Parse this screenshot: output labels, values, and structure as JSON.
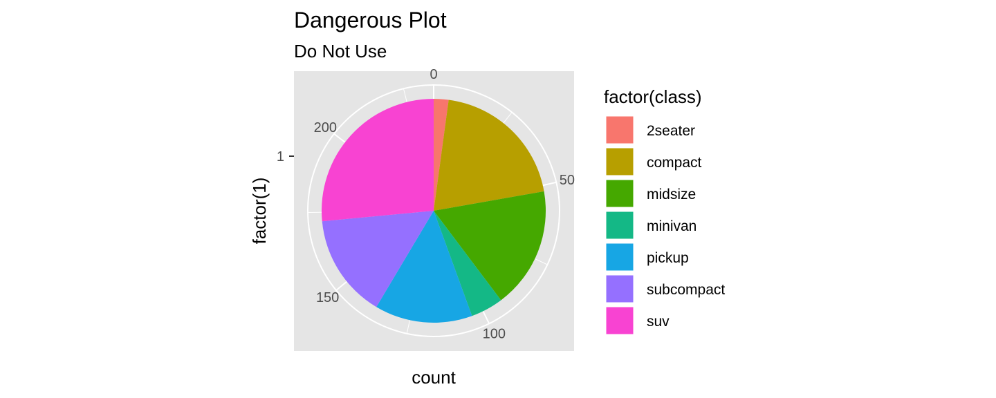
{
  "chart_data": {
    "type": "pie",
    "title": "Dangerous Plot",
    "subtitle": "Do Not Use",
    "xlabel": "count",
    "ylabel": "factor(1)",
    "y_tick_labels": [
      "1"
    ],
    "theta_ticks": [
      0,
      50,
      100,
      150,
      200
    ],
    "theta_range": [
      0,
      234
    ],
    "grid": true,
    "legend_title": "factor(class)",
    "legend_position": "right",
    "categories": [
      "2seater",
      "compact",
      "midsize",
      "minivan",
      "pickup",
      "subcompact",
      "suv"
    ],
    "values": [
      5,
      47,
      41,
      11,
      33,
      35,
      62
    ],
    "colors": [
      "#F8766D",
      "#B79F00",
      "#45A800",
      "#14B886",
      "#17A6E4",
      "#9570FF",
      "#F843D2"
    ],
    "panel_color": "#E5E5E5"
  }
}
